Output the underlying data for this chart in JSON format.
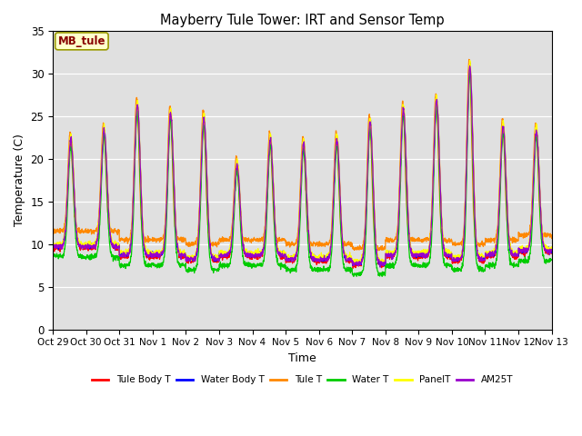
{
  "title": "Mayberry Tule Tower: IRT and Sensor Temp",
  "xlabel": "Time",
  "ylabel": "Temperature (C)",
  "ylim": [
    0,
    35
  ],
  "yticks": [
    0,
    5,
    10,
    15,
    20,
    25,
    30,
    35
  ],
  "label_box": "MB_tule",
  "plot_bg": "#e0e0e0",
  "series_names": [
    "Tule Body T",
    "Water Body T",
    "Tule T",
    "Water T",
    "PanelT",
    "AM25T"
  ],
  "series_colors": [
    "#ff0000",
    "#0000ff",
    "#ff8800",
    "#00cc00",
    "#ffff00",
    "#9900cc"
  ],
  "n_days": 15,
  "pts_per_day": 144,
  "xtick_labels": [
    "Oct 29",
    "Oct 30",
    "Oct 31",
    "Nov 1",
    "Nov 2",
    "Nov 3",
    "Nov 4",
    "Nov 5",
    "Nov 6",
    "Nov 7",
    "Nov 8",
    "Nov 9",
    "Nov 10",
    "Nov 11",
    "Nov 12",
    "Nov 13"
  ],
  "night_base": [
    9.5,
    9.5,
    8.5,
    8.5,
    8.0,
    8.5,
    8.5,
    8.0,
    8.0,
    7.5,
    8.5,
    8.5,
    8.0,
    8.5,
    9.0
  ],
  "day_peaks": [
    22.0,
    23.0,
    26.0,
    25.0,
    24.5,
    19.0,
    22.0,
    21.5,
    22.0,
    24.0,
    25.5,
    26.5,
    30.5,
    23.5,
    23.0
  ],
  "offsets": [
    0.0,
    0.5,
    1.2,
    -0.5,
    0.8,
    0.3
  ],
  "night_offsets": [
    0.0,
    0.3,
    2.0,
    -1.0,
    0.5,
    0.2
  ],
  "peak_widths": [
    0.09,
    0.085,
    0.07,
    0.08,
    0.088,
    0.087
  ],
  "peak_positions": [
    0.54,
    0.54,
    0.52,
    0.54,
    0.54,
    0.54
  ]
}
